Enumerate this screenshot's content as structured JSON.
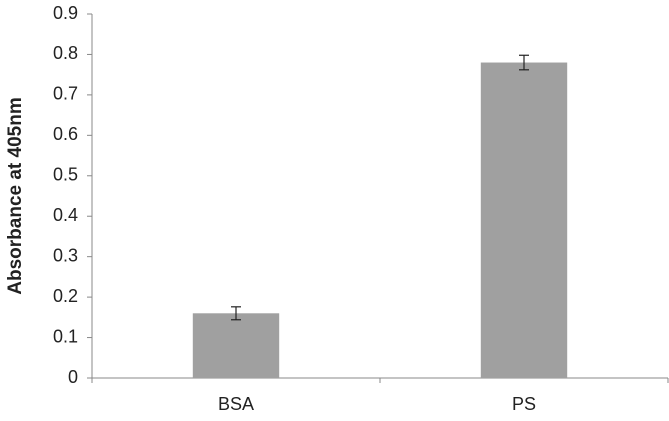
{
  "chart_data": {
    "type": "bar",
    "y_label": "Absorbance at 405nm",
    "categories": [
      "BSA",
      "PS"
    ],
    "values": [
      0.16,
      0.78
    ],
    "errors": [
      0.016,
      0.018
    ],
    "color": "#a0a0a0",
    "ylim": [
      0,
      0.9
    ],
    "yticks": [
      0,
      0.1,
      0.2,
      0.3,
      0.4,
      0.5,
      0.6,
      0.7,
      0.8,
      0.9
    ],
    "grid": false
  }
}
